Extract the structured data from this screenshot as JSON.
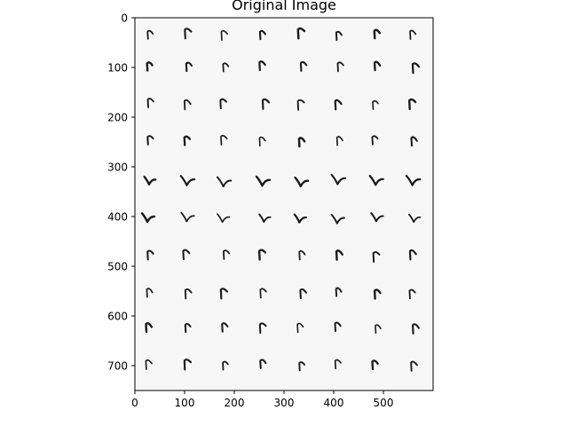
{
  "figure": {
    "title": "Original Image"
  },
  "image": {
    "description": "Grid of handwritten letter-like glyphs (r / v shapes) in black ink on near-white paper",
    "rows": 10,
    "cols": 8,
    "background": "#f7f7f7",
    "ink": "#1a1a1a",
    "glyph_rows": [
      "r",
      "r",
      "r",
      "r",
      "v",
      "v",
      "r",
      "r",
      "r",
      "r"
    ]
  },
  "axes": {
    "x_ticks": [
      0,
      100,
      200,
      300,
      400,
      500
    ],
    "y_ticks": [
      0,
      100,
      200,
      300,
      400,
      500,
      600,
      700
    ],
    "x_range": [
      0,
      600
    ],
    "y_range": [
      0,
      750
    ],
    "axis_color": "#000000"
  }
}
